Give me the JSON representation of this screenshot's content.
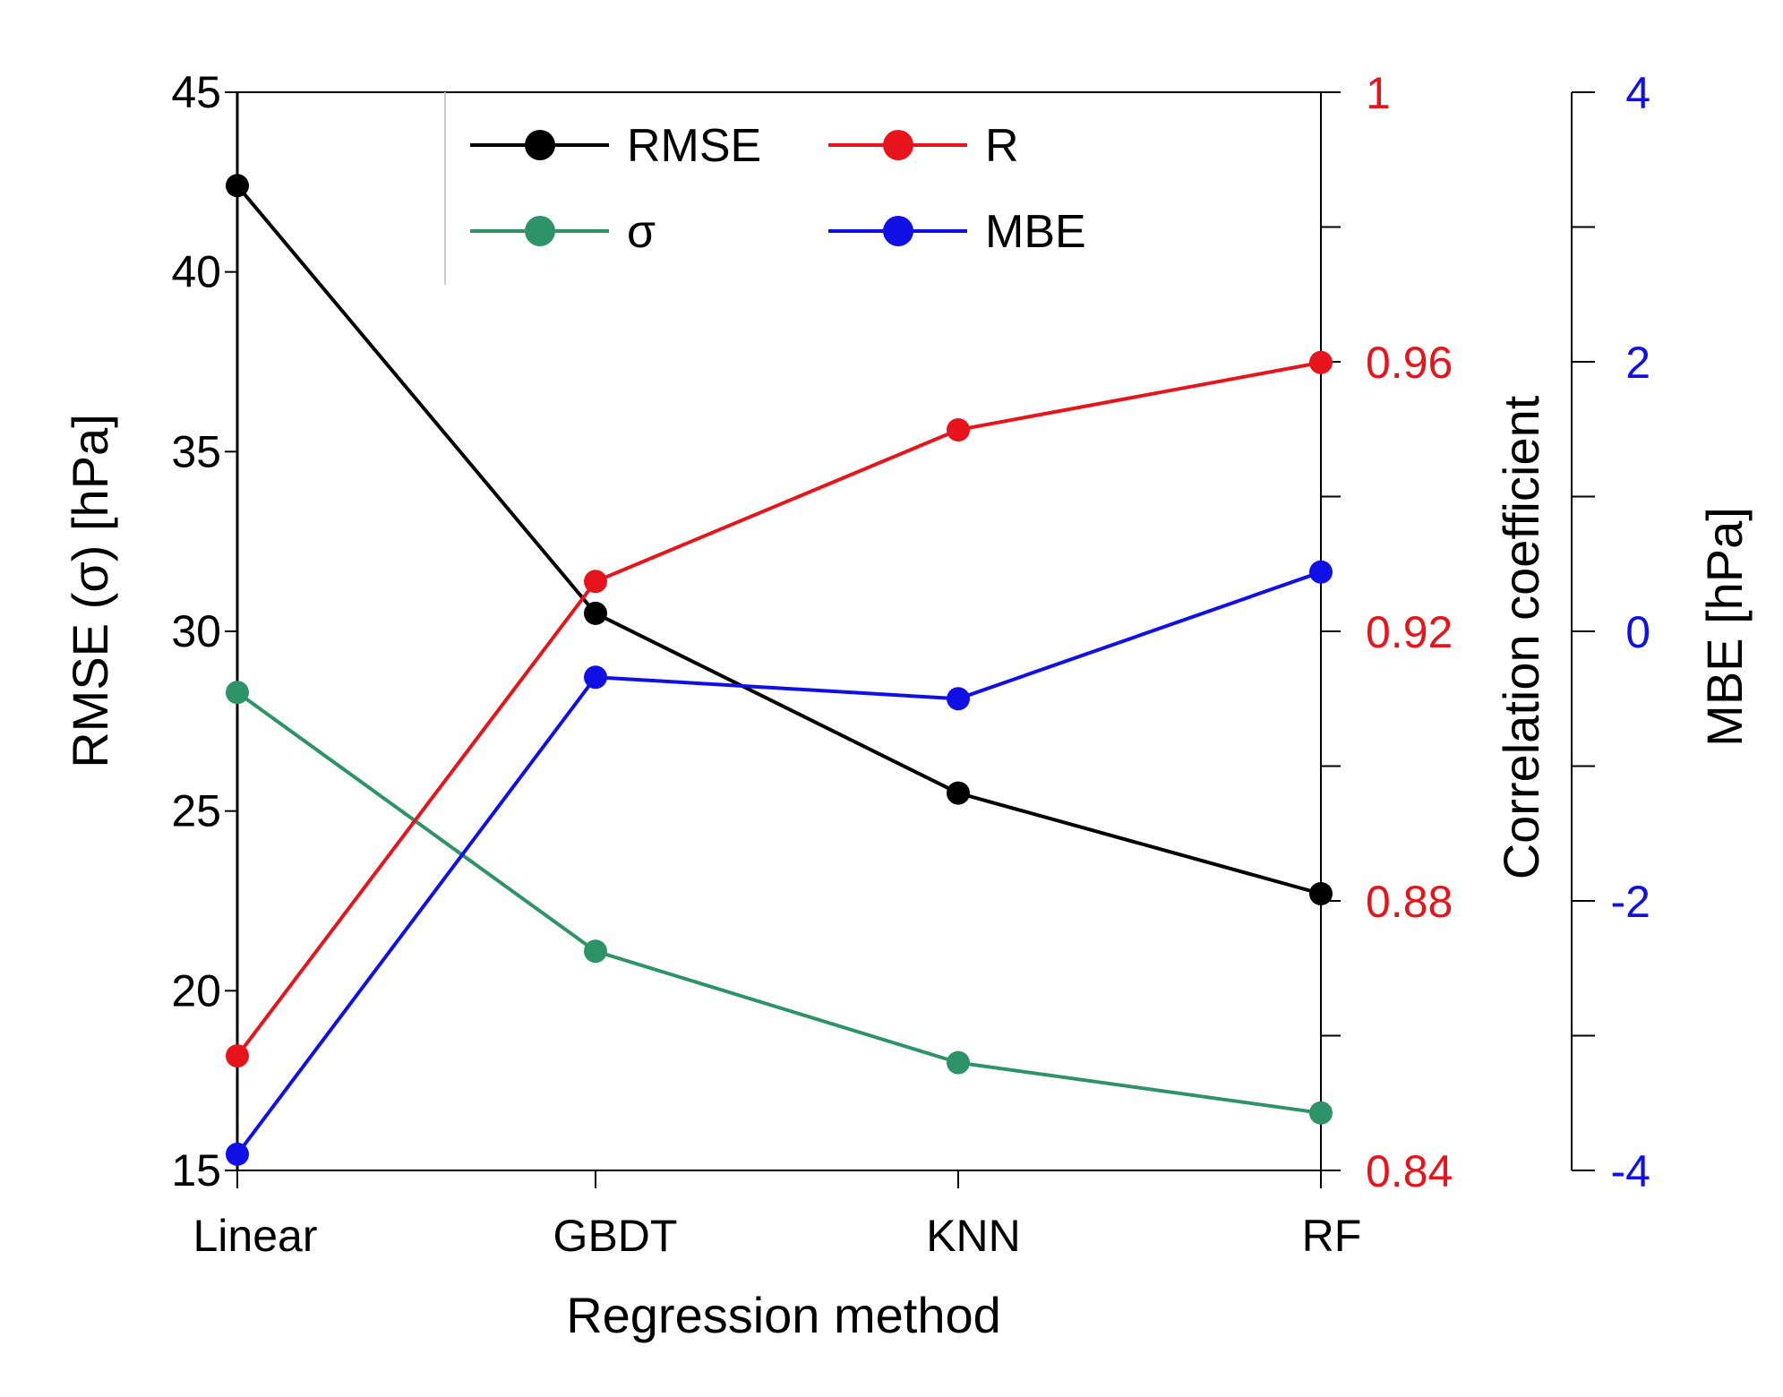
{
  "chart_data": {
    "type": "line",
    "title": "",
    "xlabel": "Regression method",
    "categories": [
      "Linear",
      "GBDT",
      "KNN",
      "RF"
    ],
    "axes": {
      "left": {
        "label": "RMSE (σ) [hPa]",
        "range": [
          15,
          45
        ],
        "ticks": [
          15,
          20,
          25,
          30,
          35,
          40,
          45
        ],
        "tick_labels": [
          "15",
          "20",
          "25",
          "30",
          "35",
          "40",
          "45"
        ],
        "color": "#000000"
      },
      "right": {
        "label": "Correlation coefficient",
        "range": [
          0.84,
          1.0
        ],
        "ticks": [
          0.84,
          0.88,
          0.92,
          0.96,
          1.0
        ],
        "tick_labels": [
          "0.84",
          "0.88",
          "0.92",
          "0.96",
          "1"
        ],
        "minor_ticks": [
          0.86,
          0.9,
          0.94,
          0.98
        ],
        "color": "#e8141c"
      },
      "right2": {
        "label": "MBE [hPa]",
        "range": [
          -4,
          4
        ],
        "ticks": [
          -4,
          -2,
          0,
          2,
          4
        ],
        "tick_labels": [
          "-4",
          "-2",
          "0",
          "2",
          "4"
        ],
        "minor_ticks": [
          -3,
          -1,
          1,
          3
        ],
        "color": "#1010e6"
      }
    },
    "series": [
      {
        "name": "RMSE",
        "axis": "left",
        "color": "#000000",
        "values": [
          42.4,
          30.5,
          25.5,
          22.7
        ]
      },
      {
        "name": "σ",
        "axis": "left",
        "color": "#2e9467",
        "values": [
          28.3,
          21.1,
          18.0,
          16.6
        ]
      },
      {
        "name": "R",
        "axis": "right",
        "color": "#e8141c",
        "values": [
          0.857,
          0.9274,
          0.9499,
          0.9599
        ]
      },
      {
        "name": "MBE",
        "axis": "right2",
        "color": "#1010e6",
        "values": [
          -3.88,
          -0.34,
          -0.5,
          0.44
        ]
      }
    ],
    "legend": {
      "position": "top-left",
      "entries": [
        "RMSE",
        "R",
        "σ",
        "MBE"
      ]
    },
    "grid": false
  }
}
